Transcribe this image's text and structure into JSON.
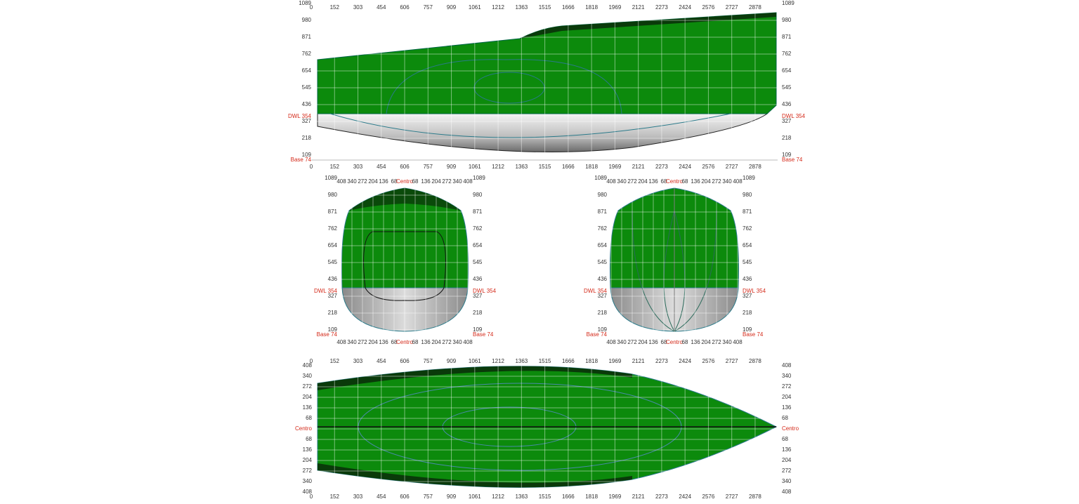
{
  "profile": {
    "x_ticks": [
      "0",
      "152",
      "303",
      "454",
      "606",
      "757",
      "909",
      "1061",
      "1212",
      "1363",
      "1515",
      "1666",
      "1818",
      "1969",
      "2121",
      "2273",
      "2424",
      "2576",
      "2727",
      "2878"
    ],
    "y_ticks": [
      "1089",
      "980",
      "871",
      "762",
      "654",
      "545",
      "436",
      "327",
      "218",
      "109"
    ],
    "dwl": "DWL 354",
    "base": "Base 74"
  },
  "body_plans": [
    {
      "x_ticks": [
        "408",
        "340",
        "272",
        "204",
        "136",
        "68",
        "Centro",
        "68",
        "136",
        "204",
        "272",
        "340",
        "408"
      ],
      "y_ticks": [
        "1089",
        "980",
        "871",
        "762",
        "654",
        "545",
        "436",
        "327",
        "218",
        "109"
      ],
      "dwl": "DWL 354",
      "base": "Base 74"
    },
    {
      "x_ticks": [
        "408",
        "340",
        "272",
        "204",
        "136",
        "68",
        "Centro",
        "68",
        "136",
        "204",
        "272",
        "340",
        "408"
      ],
      "y_ticks": [
        "1089",
        "980",
        "871",
        "762",
        "654",
        "545",
        "436",
        "327",
        "218",
        "109"
      ],
      "dwl": "DWL 354",
      "base": "Base 74"
    }
  ],
  "plan": {
    "x_ticks": [
      "0",
      "152",
      "303",
      "454",
      "606",
      "757",
      "909",
      "1061",
      "1212",
      "1363",
      "1515",
      "1666",
      "1818",
      "1969",
      "2121",
      "2273",
      "2424",
      "2576",
      "2727",
      "2878"
    ],
    "y_ticks": [
      "408",
      "340",
      "272",
      "204",
      "136",
      "68",
      "Centro",
      "68",
      "136",
      "204",
      "272",
      "340",
      "408"
    ]
  }
}
